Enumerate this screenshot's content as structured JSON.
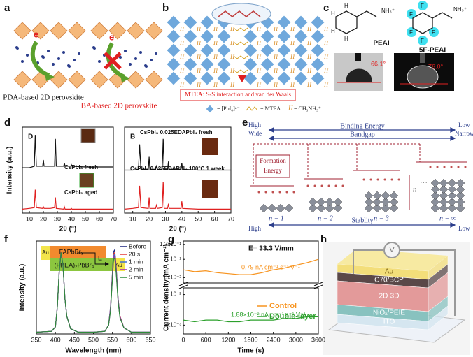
{
  "figure": {
    "a": {
      "label": "a",
      "electrons": [
        "e",
        "e"
      ],
      "captions": [
        "PDA-based 2D perovskite",
        "BA-based 2D perovskite"
      ]
    },
    "b": {
      "label": "b",
      "note": "MTEA: S-S interaction and van der Waals",
      "cation_symbol": "H",
      "legend": [
        "= [PbI₆]⁴⁻",
        "= MTEA",
        "= CH₃NH₃⁺"
      ]
    },
    "c": {
      "label": "c",
      "molecules": [
        "PEAI",
        "5F-PEAI"
      ],
      "ammonium": "NH₃⁺",
      "hydrogen": "H",
      "fluorine": "F",
      "angles": [
        "66.1°",
        "76.0°"
      ]
    },
    "d": {
      "label": "d"
    },
    "e": {
      "label": "e",
      "left_top": [
        "High",
        "Wide"
      ],
      "right_top": [
        "Low",
        "Narrow"
      ],
      "binding": "Binding Energy",
      "bandgap": "Bandgap",
      "formation": [
        "Formation",
        "Energy"
      ],
      "phases": [
        "n = 1",
        "n = 2",
        "n = 3",
        "n = ∞"
      ],
      "n_symbol": "n",
      "dots": "···",
      "stability": "Stablity",
      "stability_ends": [
        "High",
        "Low"
      ]
    },
    "f": {
      "label": "f",
      "inset": {
        "electrode_left": "Au",
        "top_layer": "FAPbBr₃",
        "bottom_layer": "(FPEA)₂PbBr₄",
        "field": "E",
        "electrode_right": "Au"
      }
    },
    "g": {
      "label": "g"
    },
    "h": {
      "label": "h",
      "source": "V",
      "layers": [
        "Au",
        "C70/BCP",
        "2D-3D",
        "NiOₓ/PEIE",
        "ITO"
      ]
    }
  },
  "chart_data": [
    {
      "type": "line",
      "annotations": [
        "D"
      ],
      "xlabel": "2θ (°)",
      "ylabel": "Intensity (a.u.)",
      "xlim": [
        5,
        70
      ],
      "xticks": [
        10,
        20,
        30,
        40,
        50,
        60,
        70
      ],
      "ylim": [
        0,
        1.1
      ],
      "x": [
        5,
        10,
        13.5,
        14.2,
        15,
        19.5,
        20,
        20.5,
        25,
        28,
        28.6,
        29.2,
        34.5,
        35,
        35.5,
        39.5,
        40,
        40.5,
        50,
        60,
        70
      ],
      "series": [
        {
          "name": "CsPbI₃ fresh",
          "color": "#111111",
          "values": [
            0.58,
            0.58,
            0.6,
            1.0,
            0.6,
            0.6,
            0.68,
            0.6,
            0.6,
            0.6,
            0.95,
            0.6,
            0.6,
            0.64,
            0.6,
            0.6,
            0.62,
            0.6,
            0.59,
            0.59,
            0.59
          ]
        },
        {
          "name": "CsPbI₃ aged",
          "color": "#e02020",
          "values": [
            0.05,
            0.06,
            0.07,
            0.3,
            0.07,
            0.06,
            0.08,
            0.06,
            0.06,
            0.07,
            0.2,
            0.06,
            0.05,
            0.08,
            0.05,
            0.05,
            0.06,
            0.05,
            0.05,
            0.05,
            0.05
          ]
        }
      ]
    },
    {
      "type": "line",
      "annotations": [
        "B"
      ],
      "xlabel": "2θ (°)",
      "xlim": [
        5,
        70
      ],
      "xticks": [
        10,
        20,
        30,
        40,
        50,
        60,
        70
      ],
      "ylim": [
        0,
        1.1
      ],
      "x": [
        5,
        10,
        13.5,
        14.2,
        15,
        19.5,
        20,
        20.5,
        24,
        24.5,
        25,
        28,
        28.6,
        29.2,
        31.3,
        31.8,
        32.3,
        39.5,
        40,
        40.5,
        50,
        60,
        70
      ],
      "series": [
        {
          "name": "CsPbI₃ 0.025EDAPbI₄ fresh",
          "color": "#111111",
          "values": [
            0.55,
            0.55,
            0.56,
            0.88,
            0.56,
            0.56,
            0.72,
            0.56,
            0.56,
            0.6,
            0.56,
            0.56,
            0.95,
            0.56,
            0.56,
            0.66,
            0.56,
            0.56,
            0.64,
            0.56,
            0.55,
            0.55,
            0.55
          ]
        },
        {
          "name": "CsPbI₃ 0.025EDAPbI₄ 100°C 1 week",
          "color": "#e02020",
          "values": [
            0.05,
            0.06,
            0.07,
            0.35,
            0.07,
            0.06,
            0.2,
            0.06,
            0.06,
            0.1,
            0.06,
            0.07,
            0.4,
            0.06,
            0.06,
            0.12,
            0.06,
            0.06,
            0.15,
            0.06,
            0.05,
            0.05,
            0.05
          ]
        }
      ]
    },
    {
      "type": "line",
      "xlabel": "Wavelength (nm)",
      "ylabel": "Intensity (a.u.)",
      "legend": "upper right",
      "xlim": [
        350,
        650
      ],
      "xticks": [
        350,
        400,
        450,
        500,
        550,
        600,
        650
      ],
      "ylim": [
        0,
        1.05
      ],
      "x": [
        350,
        390,
        400,
        405,
        410,
        415,
        420,
        425,
        430,
        440,
        460,
        500,
        530,
        540,
        545,
        550,
        553,
        556,
        560,
        565,
        570,
        580,
        600,
        650
      ],
      "series": [
        {
          "name": "Before",
          "color": "#1a237e",
          "values": [
            0.02,
            0.03,
            0.08,
            0.3,
            0.7,
            0.92,
            0.78,
            0.4,
            0.2,
            0.06,
            0.02,
            0.02,
            0.03,
            0.1,
            0.3,
            0.7,
            0.93,
            0.95,
            0.75,
            0.4,
            0.2,
            0.07,
            0.02,
            0.02
          ]
        },
        {
          "name": "20 s",
          "color": "#e53935",
          "values": [
            0.02,
            0.03,
            0.08,
            0.3,
            0.7,
            0.92,
            0.78,
            0.4,
            0.2,
            0.06,
            0.02,
            0.02,
            0.03,
            0.1,
            0.29,
            0.68,
            0.9,
            0.92,
            0.73,
            0.39,
            0.2,
            0.07,
            0.02,
            0.02
          ]
        },
        {
          "name": "1 min",
          "color": "#3f6fd0",
          "values": [
            0.02,
            0.03,
            0.08,
            0.3,
            0.7,
            0.92,
            0.78,
            0.4,
            0.2,
            0.06,
            0.02,
            0.02,
            0.03,
            0.1,
            0.28,
            0.66,
            0.88,
            0.9,
            0.71,
            0.38,
            0.19,
            0.07,
            0.02,
            0.02
          ]
        },
        {
          "name": "2 min",
          "color": "#9c27b0",
          "values": [
            0.02,
            0.03,
            0.08,
            0.3,
            0.7,
            0.92,
            0.78,
            0.4,
            0.2,
            0.06,
            0.02,
            0.02,
            0.03,
            0.1,
            0.27,
            0.65,
            0.86,
            0.88,
            0.7,
            0.37,
            0.19,
            0.07,
            0.02,
            0.02
          ]
        },
        {
          "name": "5 min",
          "color": "#2e8b3a",
          "values": [
            0.02,
            0.03,
            0.08,
            0.3,
            0.7,
            0.92,
            0.78,
            0.4,
            0.2,
            0.06,
            0.02,
            0.02,
            0.03,
            0.1,
            0.26,
            0.63,
            0.84,
            0.86,
            0.68,
            0.36,
            0.18,
            0.07,
            0.02,
            0.02
          ]
        }
      ]
    },
    {
      "type": "line",
      "title": "E= 33.3 V/mm",
      "ylabel": "Current density (mA cm⁻²)",
      "annotations": [
        "0.79 nA cm⁻¹ s⁻¹ V⁻¹"
      ],
      "log_scale": true,
      "xlim": [
        0,
        3600
      ],
      "ylim": [
        0.075,
        0.125
      ],
      "yticks": [
        {
          "value": 0.12,
          "label": "1.2x10⁻¹"
        },
        {
          "value": 0.1,
          "label": "10⁻¹"
        },
        {
          "value": 0.08,
          "label": "8x10⁻²"
        }
      ],
      "x": [
        0,
        300,
        600,
        900,
        1200,
        1500,
        1800,
        2100,
        2400,
        2700,
        3000,
        3300,
        3600
      ],
      "series": [
        {
          "name": "Control",
          "color": "#f7931e",
          "values": [
            0.088,
            0.086,
            0.087,
            0.085,
            0.084,
            0.083,
            0.083,
            0.085,
            0.088,
            0.09,
            0.093,
            0.096,
            0.1
          ]
        }
      ]
    },
    {
      "type": "line",
      "xlabel": "Time (s)",
      "annotations": [
        "1.88×10⁻² nA cm⁻¹ s⁻¹ V⁻¹"
      ],
      "log_scale": true,
      "xlim": [
        0,
        3600
      ],
      "xticks": [
        0,
        600,
        1200,
        1800,
        2400,
        3000,
        3600
      ],
      "ylim": [
        0.0075,
        0.0105
      ],
      "yticks": [
        {
          "value": 0.01,
          "label": "10⁻²"
        },
        {
          "value": 0.008,
          "label": "8x10⁻³"
        }
      ],
      "x": [
        0,
        300,
        600,
        900,
        1200,
        1500,
        1800,
        2100,
        2400,
        2700,
        3000,
        3300,
        3600
      ],
      "series": [
        {
          "name": "Double-layer",
          "color": "#2ca02c",
          "values": [
            0.0083,
            0.0082,
            0.0083,
            0.0083,
            0.0082,
            0.0082,
            0.0083,
            0.0083,
            0.0083,
            0.0084,
            0.0084,
            0.0085,
            0.0085
          ]
        }
      ]
    }
  ]
}
